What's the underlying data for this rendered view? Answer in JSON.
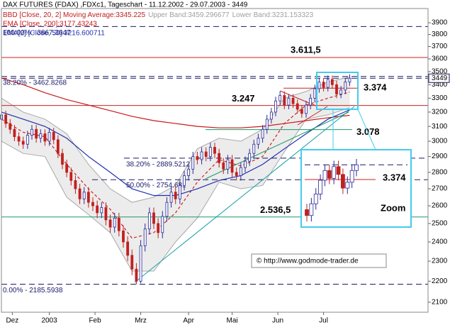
{
  "chart_data": {
    "type": "candlestick",
    "title": "DAX FUTURES (FDAX) ,FDXc1, Tageschart - 11.12.2002 - 29.07.2003 - 3449",
    "log_scale": true,
    "xlim": [
      0,
      196
    ],
    "xticks": [
      {
        "value": 5,
        "label": "Dez"
      },
      {
        "value": 22,
        "label": "2003"
      },
      {
        "value": 43,
        "label": "Feb"
      },
      {
        "value": 64,
        "label": "Mrz"
      },
      {
        "value": 86,
        "label": "Apr"
      },
      {
        "value": 106,
        "label": "Mai"
      },
      {
        "value": 127,
        "label": "Jun"
      },
      {
        "value": 148,
        "label": "Jul"
      }
    ],
    "ylim": [
      2054,
      4025
    ],
    "yticks": [
      2100,
      2200,
      2300,
      2400,
      2500,
      2600,
      2700,
      2800,
      2900,
      3000,
      3100,
      3200,
      3300,
      3400,
      3500,
      3600,
      3700,
      3800,
      3900
    ],
    "current_price": 3449,
    "candles": {
      "up_color": "#2a2a9a",
      "down_color": "#c02020",
      "x": [
        0,
        2,
        4,
        6,
        8,
        10,
        12,
        14,
        16,
        18,
        20,
        22,
        24,
        26,
        28,
        30,
        32,
        34,
        36,
        38,
        40,
        42,
        44,
        46,
        48,
        50,
        52,
        54,
        56,
        58,
        60,
        62,
        64,
        66,
        68,
        70,
        72,
        74,
        76,
        78,
        80,
        82,
        84,
        86,
        88,
        90,
        92,
        94,
        96,
        98,
        100,
        102,
        104,
        106,
        108,
        110,
        112,
        114,
        116,
        118,
        120,
        122,
        124,
        126,
        128,
        130,
        132,
        134,
        136,
        138,
        140,
        142,
        144,
        146,
        148,
        150,
        152,
        154,
        156,
        158,
        160
      ],
      "open": [
        3150,
        3180,
        3120,
        3080,
        3030,
        3000,
        2980,
        3040,
        3080,
        3020,
        3050,
        3000,
        3060,
        3010,
        2920,
        2850,
        2800,
        2750,
        2700,
        2640,
        2680,
        2620,
        2600,
        2560,
        2590,
        2520,
        2480,
        2530,
        2460,
        2400,
        2330,
        2260,
        2200,
        2380,
        2470,
        2560,
        2500,
        2450,
        2540,
        2620,
        2680,
        2640,
        2720,
        2780,
        2820,
        2900,
        2880,
        2930,
        2900,
        2960,
        2920,
        2860,
        2820,
        2880,
        2800,
        2780,
        2830,
        2870,
        2920,
        2980,
        3020,
        3080,
        3150,
        3200,
        3280,
        3320,
        3250,
        3300,
        3260,
        3220,
        3190,
        3250,
        3300,
        3370,
        3420,
        3380,
        3440,
        3400,
        3330,
        3360,
        3420
      ],
      "high": [
        3210,
        3210,
        3150,
        3110,
        3060,
        3030,
        3070,
        3110,
        3110,
        3080,
        3080,
        3090,
        3090,
        3040,
        2950,
        2880,
        2830,
        2780,
        2730,
        2710,
        2710,
        2650,
        2630,
        2620,
        2620,
        2550,
        2560,
        2560,
        2490,
        2430,
        2360,
        2290,
        2410,
        2500,
        2590,
        2590,
        2530,
        2570,
        2650,
        2710,
        2710,
        2750,
        2810,
        2850,
        2930,
        2930,
        2960,
        2960,
        2990,
        2990,
        2950,
        2890,
        2910,
        2910,
        2830,
        2860,
        2900,
        2950,
        3010,
        3050,
        3110,
        3180,
        3230,
        3310,
        3350,
        3350,
        3330,
        3330,
        3290,
        3250,
        3280,
        3330,
        3400,
        3450,
        3450,
        3470,
        3470,
        3430,
        3390,
        3450,
        3479
      ],
      "low": [
        3120,
        3090,
        3050,
        3000,
        2970,
        2950,
        2950,
        3010,
        2990,
        2990,
        2970,
        2970,
        2980,
        2890,
        2820,
        2770,
        2720,
        2670,
        2610,
        2610,
        2590,
        2570,
        2530,
        2530,
        2490,
        2450,
        2450,
        2430,
        2370,
        2300,
        2230,
        2185,
        2190,
        2350,
        2440,
        2470,
        2420,
        2420,
        2510,
        2590,
        2610,
        2610,
        2690,
        2750,
        2790,
        2850,
        2850,
        2870,
        2870,
        2890,
        2830,
        2790,
        2790,
        2770,
        2750,
        2750,
        2800,
        2840,
        2890,
        2950,
        2990,
        3050,
        3120,
        3170,
        3250,
        3220,
        3220,
        3230,
        3190,
        3160,
        3160,
        3220,
        3270,
        3340,
        3350,
        3350,
        3370,
        3300,
        3300,
        3330,
        3390
      ],
      "close": [
        3180,
        3120,
        3080,
        3030,
        3000,
        2980,
        3040,
        3080,
        3020,
        3050,
        3000,
        3060,
        3010,
        2920,
        2850,
        2800,
        2750,
        2700,
        2640,
        2680,
        2620,
        2600,
        2560,
        2590,
        2520,
        2480,
        2530,
        2460,
        2400,
        2330,
        2260,
        2200,
        2380,
        2470,
        2560,
        2500,
        2450,
        2540,
        2620,
        2680,
        2640,
        2720,
        2780,
        2820,
        2900,
        2880,
        2930,
        2900,
        2960,
        2920,
        2860,
        2820,
        2880,
        2800,
        2780,
        2830,
        2870,
        2920,
        2980,
        3020,
        3080,
        3150,
        3200,
        3280,
        3320,
        3250,
        3300,
        3260,
        3220,
        3190,
        3250,
        3300,
        3370,
        3420,
        3380,
        3440,
        3400,
        3330,
        3360,
        3420,
        3449
      ]
    },
    "indicator_x": [
      0,
      10,
      20,
      30,
      40,
      50,
      60,
      70,
      80,
      90,
      100,
      110,
      120,
      130,
      140,
      150,
      160
    ],
    "series": [
      {
        "name": "BBD [Close, 20, 2] Moving Average:3345.225",
        "color": "#d02020",
        "dashed": true,
        "values": [
          3150,
          3060,
          3030,
          2850,
          2700,
          2580,
          2420,
          2450,
          2560,
          2740,
          2880,
          2840,
          2900,
          3120,
          3250,
          3300,
          3345
        ]
      },
      {
        "name": "Upper Band:3459.296677",
        "color": "#a8a8a8",
        "band": true,
        "values": [
          3300,
          3200,
          3150,
          3050,
          2850,
          2700,
          2620,
          2650,
          2720,
          2950,
          3020,
          3000,
          3080,
          3300,
          3350,
          3420,
          3460
        ]
      },
      {
        "name": "Lower Band:3231.153323",
        "color": "#a8a8a8",
        "band": true,
        "values": [
          3000,
          2920,
          2900,
          2650,
          2550,
          2450,
          2250,
          2250,
          2400,
          2530,
          2740,
          2700,
          2720,
          2930,
          3150,
          3180,
          3231
        ]
      },
      {
        "name": "EMA [Close, 200]:3177.43243",
        "color": "#c81818",
        "values": [
          3450,
          3400,
          3340,
          3290,
          3250,
          3210,
          3170,
          3140,
          3120,
          3100,
          3090,
          3090,
          3100,
          3120,
          3140,
          3160,
          3177
        ]
      },
      {
        "name": "EMA[2] [Close, 50]:3216.600711",
        "color": "#2030b0",
        "values": [
          3200,
          3150,
          3100,
          3020,
          2900,
          2800,
          2700,
          2660,
          2660,
          2700,
          2750,
          2780,
          2850,
          2950,
          3050,
          3150,
          3216
        ]
      }
    ],
    "levels": [
      {
        "value": 3611.5,
        "label": "3.611,5",
        "color": "#cc2020"
      },
      {
        "value": 3374,
        "label": "3.374",
        "color": "#cc2020"
      },
      {
        "value": 3247,
        "label": "3.247",
        "color": "#cc2020"
      },
      {
        "value": 3078,
        "label": "3.078",
        "color": "#1a9a6a"
      },
      {
        "value": 2536.5,
        "label": "2.536,5",
        "color": "#1a9a6a"
      }
    ],
    "fib_levels": [
      {
        "value": 3867.3647,
        "label": "100.00% - 3867.3647"
      },
      {
        "value": 3462.8268,
        "label": "38.20% - 3462.8268"
      },
      {
        "value": 2889.5212,
        "label": "38.20% - 2889.5212"
      },
      {
        "value": 2754.681,
        "label": "50.00% - 2754.681"
      },
      {
        "value": 2185.5938,
        "label": "0.00% - 2185.5938"
      }
    ],
    "zoom_label": "Zoom",
    "zoom_level_label": "3.374",
    "copyright": "© http://www.godmode-trader.de"
  }
}
